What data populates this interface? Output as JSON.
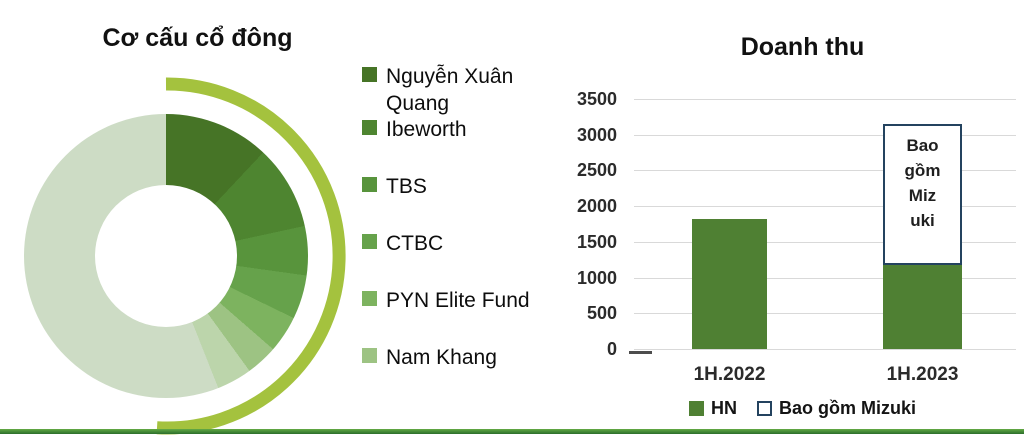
{
  "page_title": "Shareholder structure and revenue charts",
  "chart_data": [
    {
      "type": "pie",
      "title": "Cơ cấu cổ đông",
      "legend_position": "right",
      "slices": [
        {
          "label": "Nguyễn Xuân Quang",
          "percent": 12.0,
          "color": "#467426"
        },
        {
          "label": "Ibeworth",
          "percent": 9.6,
          "color": "#4e8530"
        },
        {
          "label": "TBS",
          "percent": 5.6,
          "color": "#58943c"
        },
        {
          "label": "CTBC",
          "percent": 5.0,
          "color": "#66a24b"
        },
        {
          "label": "PYN Elite Fund",
          "percent": 4.2,
          "color": "#7db35f"
        },
        {
          "label": "Nam Khang",
          "percent": 3.6,
          "color": "#9dc383"
        },
        {
          "label": "",
          "percent": 4.0,
          "color": "#bcd5ab"
        },
        {
          "label": "",
          "percent": 56.0,
          "color": "#cddcc5"
        }
      ],
      "legend_labels": [
        "Nguyễn Xuân Quang",
        "Ibeworth",
        "TBS",
        "CTBC",
        "PYN Elite Fund",
        "Nam Khang"
      ],
      "decoration": {
        "arc_color": "#a4c23e"
      }
    },
    {
      "type": "bar",
      "title": "Doanh thu",
      "categories": [
        "1H.2022",
        "1H.2023"
      ],
      "series": [
        {
          "name": "HN",
          "values": [
            1820,
            1180
          ],
          "color": "#4f8033",
          "style": "filled"
        },
        {
          "name": "Bao gồm Mizuki",
          "values": [
            0,
            1970
          ],
          "color": "#ffffff",
          "border_color": "#24435f",
          "style": "outlined"
        }
      ],
      "stacked_totals": [
        1820,
        3150
      ],
      "bar_label_lines": [
        "Bao",
        "gồm",
        "Miz",
        "uki"
      ],
      "ylim": [
        0,
        3500
      ],
      "yticks": [
        0,
        500,
        1000,
        1500,
        2000,
        2500,
        3000,
        3500
      ],
      "grid": true,
      "gridline_color": "#d9d9d9",
      "legend_position": "bottom"
    }
  ]
}
